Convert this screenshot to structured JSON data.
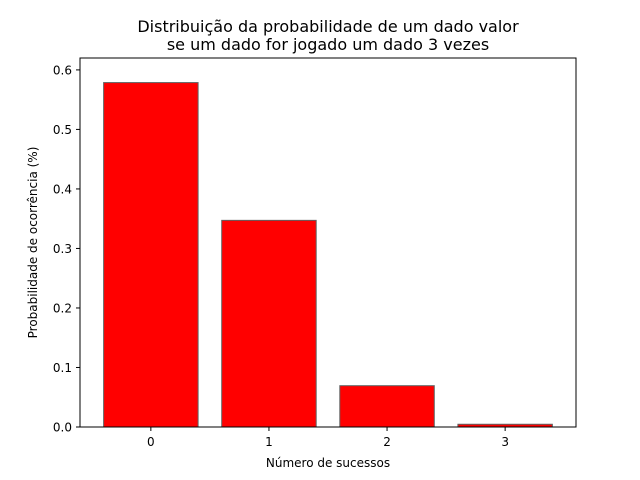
{
  "chart_data": {
    "type": "bar",
    "title_lines": [
      "Distribuição da probabilidade de um dado valor",
      "se um dado for jogado um dado 3 vezes"
    ],
    "xlabel": "Número de sucessos",
    "ylabel": "Probabilidade de ocorrência (%)",
    "categories": [
      "0",
      "1",
      "2",
      "3"
    ],
    "values": [
      0.5787,
      0.3472,
      0.0694,
      0.0046
    ],
    "ylim": [
      0,
      0.62
    ],
    "yticks": [
      "0.0",
      "0.1",
      "0.2",
      "0.3",
      "0.4",
      "0.5",
      "0.6"
    ],
    "bar_color": "#ff0000",
    "bar_edge_color": "#606060",
    "grid": false,
    "legend": "none"
  }
}
